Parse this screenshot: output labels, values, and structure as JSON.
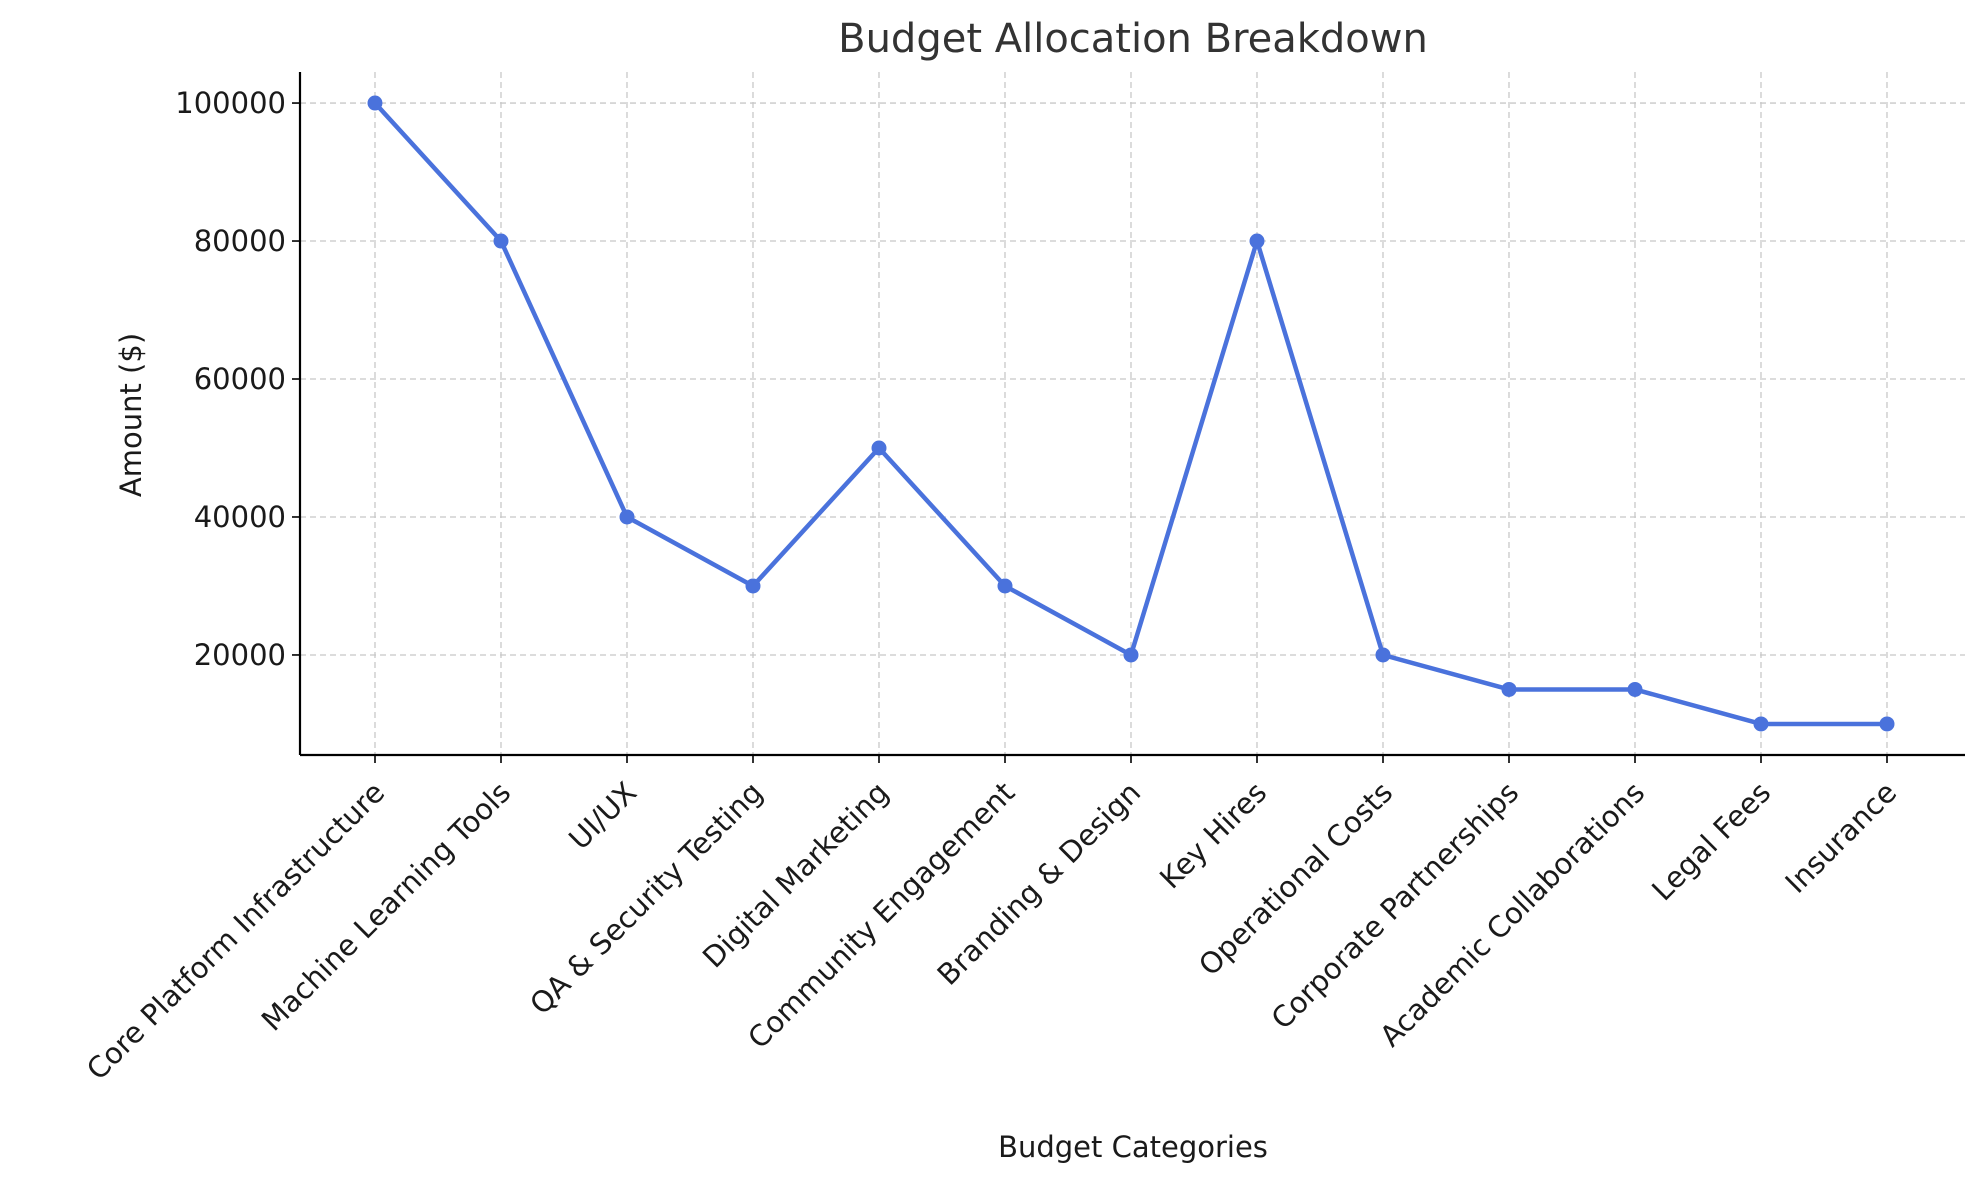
{
  "chart_data": {
    "type": "line",
    "title": "Budget Allocation Breakdown",
    "xlabel": "Budget Categories",
    "ylabel": "Amount ($)",
    "categories": [
      "Core Platform Infrastructure",
      "Machine Learning Tools",
      "UI/UX",
      "QA & Security Testing",
      "Digital Marketing",
      "Community Engagement",
      "Branding & Design",
      "Key Hires",
      "Operational Costs",
      "Corporate Partnerships",
      "Academic Collaborations",
      "Legal Fees",
      "Insurance"
    ],
    "series": [
      {
        "values": [
          100000,
          80000,
          40000,
          30000,
          50000,
          30000,
          20000,
          80000,
          20000,
          15000,
          15000,
          10000,
          10000
        ],
        "color": "#4a72dc"
      }
    ],
    "ylim": [
      5500,
      104500
    ],
    "yticks": [
      20000,
      40000,
      60000,
      80000,
      100000
    ],
    "ytick_labels": [
      "20000",
      "40000",
      "60000",
      "80000",
      "100000"
    ],
    "grid": true,
    "line_style": "solid",
    "marker": "circle"
  }
}
